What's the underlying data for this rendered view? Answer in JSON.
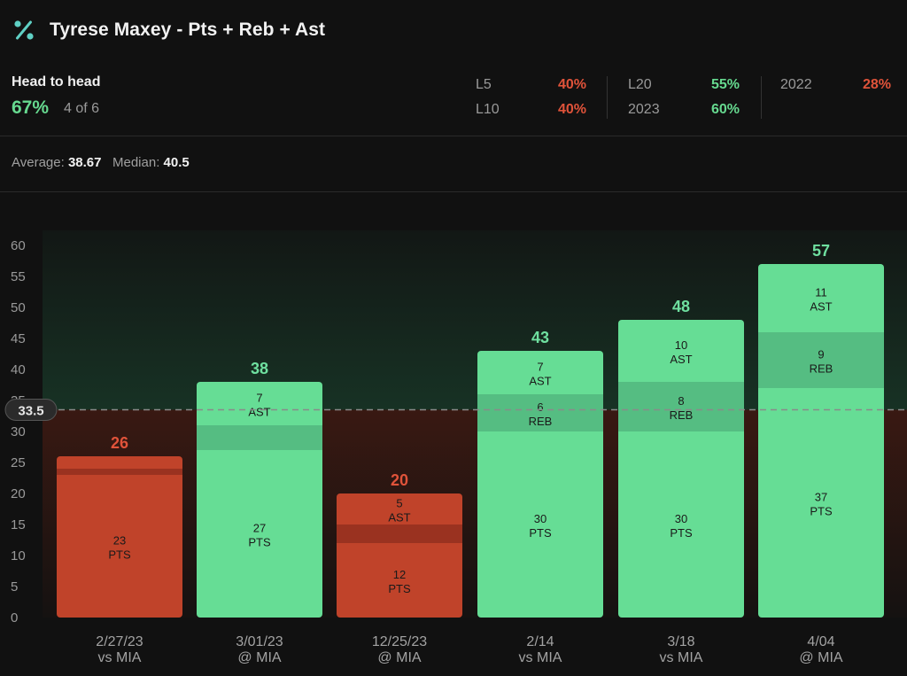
{
  "header": {
    "icon": "percent-icon",
    "title": "Tyrese Maxey - Pts + Reb + Ast"
  },
  "head_to_head": {
    "label": "Head to head",
    "percent": "67%",
    "record": "4 of 6"
  },
  "splits": [
    {
      "key": "L5",
      "value": "40%",
      "color": "#e0533a"
    },
    {
      "key": "L10",
      "value": "40%",
      "color": "#e0533a"
    },
    {
      "key": "L20",
      "value": "55%",
      "color": "#66d98f"
    },
    {
      "key": "2023",
      "value": "60%",
      "color": "#66d98f"
    },
    {
      "key": "2022",
      "value": "28%",
      "color": "#e0533a"
    }
  ],
  "summary": {
    "average_label": "Average:",
    "average_value": "38.67",
    "median_label": "Median:",
    "median_value": "40.5"
  },
  "colors": {
    "over": "#66dd95",
    "under": "#c0432a",
    "over_text": "#6fe0a0",
    "under_text": "#e0533a"
  },
  "chart_data": {
    "type": "bar",
    "stacked": true,
    "ylim": [
      0,
      60
    ],
    "yticks": [
      0,
      5,
      10,
      15,
      20,
      25,
      30,
      35,
      40,
      45,
      50,
      55,
      60
    ],
    "line": 33.5,
    "line_label": "33.5",
    "games": [
      {
        "date": "2/27/23",
        "opponent": "vs MIA",
        "total": 26,
        "result": "under",
        "segments": [
          {
            "stat": "PTS",
            "value": 23
          },
          {
            "stat": "REB",
            "value": 1
          },
          {
            "stat": "AST",
            "value": 2
          }
        ]
      },
      {
        "date": "3/01/23",
        "opponent": "@ MIA",
        "total": 38,
        "result": "over",
        "segments": [
          {
            "stat": "PTS",
            "value": 27
          },
          {
            "stat": "REB",
            "value": 4
          },
          {
            "stat": "AST",
            "value": 7
          }
        ]
      },
      {
        "date": "12/25/23",
        "opponent": "@ MIA",
        "total": 20,
        "result": "under",
        "segments": [
          {
            "stat": "PTS",
            "value": 12
          },
          {
            "stat": "REB",
            "value": 3
          },
          {
            "stat": "AST",
            "value": 5
          }
        ]
      },
      {
        "date": "2/14",
        "opponent": "vs MIA",
        "total": 43,
        "result": "over",
        "segments": [
          {
            "stat": "PTS",
            "value": 30
          },
          {
            "stat": "REB",
            "value": 6
          },
          {
            "stat": "AST",
            "value": 7
          }
        ]
      },
      {
        "date": "3/18",
        "opponent": "vs MIA",
        "total": 48,
        "result": "over",
        "segments": [
          {
            "stat": "PTS",
            "value": 30
          },
          {
            "stat": "REB",
            "value": 8
          },
          {
            "stat": "AST",
            "value": 10
          }
        ]
      },
      {
        "date": "4/04",
        "opponent": "@ MIA",
        "total": 57,
        "result": "over",
        "segments": [
          {
            "stat": "PTS",
            "value": 37
          },
          {
            "stat": "REB",
            "value": 9
          },
          {
            "stat": "AST",
            "value": 11
          }
        ]
      }
    ]
  }
}
